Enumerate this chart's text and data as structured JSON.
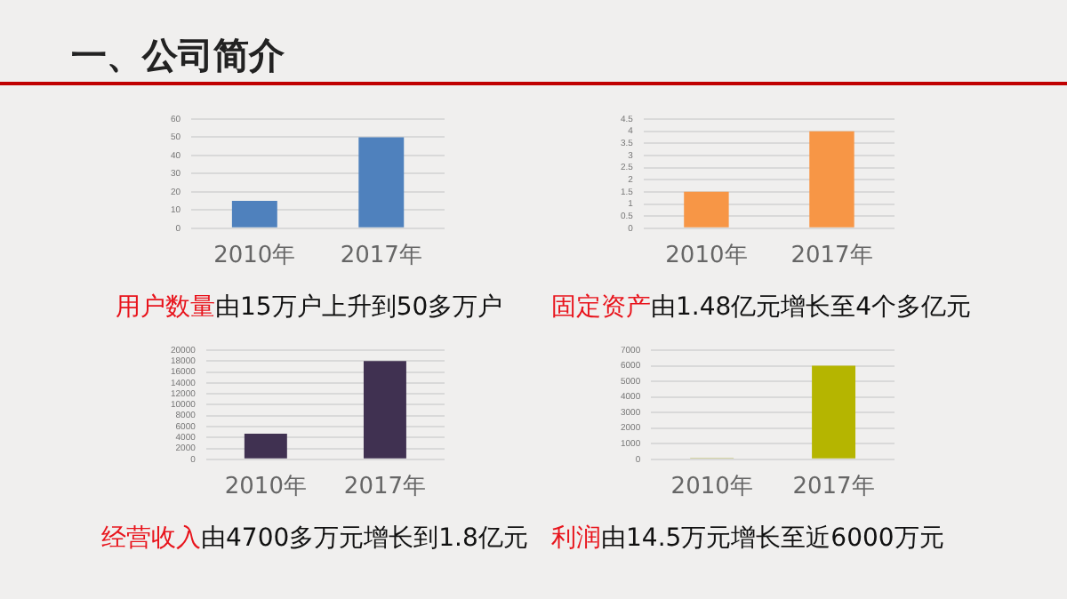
{
  "chart_data": [
    {
      "type": "other",
      "title": "一、公司简介"
    },
    {
      "type": "bar",
      "categories": [
        "2010年",
        "2017年"
      ],
      "values": [
        15,
        50
      ],
      "color": "#4f81bd",
      "ylim": [
        0,
        60
      ],
      "yticks": [
        0,
        10,
        20,
        30,
        40,
        50,
        60
      ],
      "grid": "y",
      "annotations": [
        "用户数量",
        "由15万户上升到50多万户"
      ]
    },
    {
      "type": "bar",
      "categories": [
        "2010年",
        "2017年"
      ],
      "values": [
        1.5,
        4
      ],
      "color": "#f79646",
      "ylim": [
        0,
        4.5
      ],
      "yticks": [
        0,
        0.5,
        1,
        1.5,
        2,
        2.5,
        3,
        3.5,
        4,
        4.5
      ],
      "grid": "y",
      "annotations": [
        "固定资产",
        "由1.48亿元增长至4个多亿元"
      ]
    },
    {
      "type": "bar",
      "categories": [
        "2010年",
        "2017年"
      ],
      "values": [
        4700,
        18000
      ],
      "color": "#403151",
      "ylim": [
        0,
        20000
      ],
      "yticks": [
        0,
        2000,
        4000,
        6000,
        8000,
        10000,
        12000,
        14000,
        16000,
        18000,
        20000
      ],
      "grid": "y",
      "annotations": [
        "经营收入",
        "由4700多万元增长到1.8亿元"
      ]
    },
    {
      "type": "bar",
      "categories": [
        "2010年",
        "2017年"
      ],
      "values": [
        100,
        6000
      ],
      "colors": [
        "#c9c98a",
        "#b5b500"
      ],
      "ylim": [
        0,
        7000
      ],
      "yticks": [
        0,
        1000,
        2000,
        3000,
        4000,
        5000,
        6000,
        7000
      ],
      "grid": "y",
      "annotations": [
        "利润",
        "由14.5万元增长至近6000万元"
      ]
    }
  ]
}
